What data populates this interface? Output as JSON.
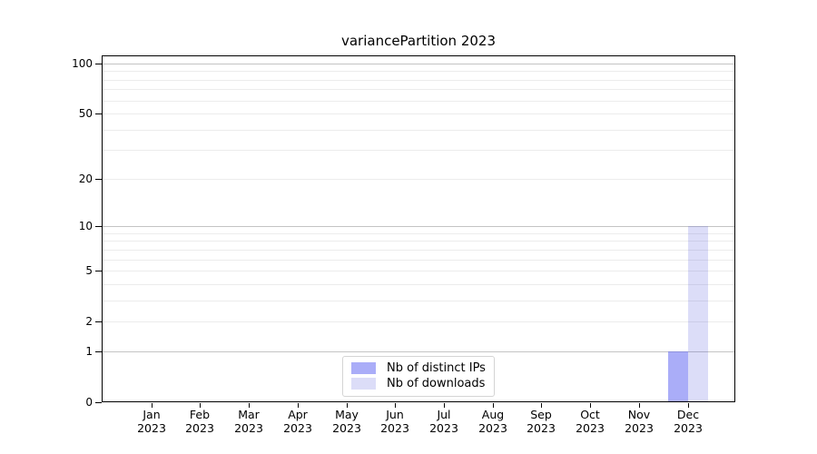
{
  "chart_data": {
    "type": "bar",
    "title": "variancePartition 2023",
    "x_categories": [
      "Jan",
      "Feb",
      "Mar",
      "Apr",
      "May",
      "Jun",
      "Jul",
      "Aug",
      "Sep",
      "Oct",
      "Nov",
      "Dec"
    ],
    "x_year_label": "2023",
    "series": [
      {
        "name": "Nb of distinct IPs",
        "color": "#aaadf8",
        "values": [
          0,
          0,
          0,
          0,
          0,
          0,
          0,
          0,
          0,
          0,
          0,
          1
        ]
      },
      {
        "name": "Nb of downloads",
        "color": "#dcddf8",
        "values": [
          0,
          0,
          0,
          0,
          0,
          0,
          0,
          0,
          0,
          0,
          0,
          10
        ]
      }
    ],
    "y_scale": "log10(value+1)",
    "y_ticks": [
      100,
      50,
      20,
      10,
      5,
      2,
      1,
      0
    ],
    "y_major_gridlines": [
      1,
      10,
      100
    ],
    "y_minor_gridlines": [
      2,
      3,
      4,
      5,
      6,
      7,
      8,
      9,
      20,
      30,
      40,
      50,
      60,
      70,
      80,
      90
    ],
    "ylim": [
      0,
      112
    ],
    "xlabel": "",
    "ylabel": "",
    "grid": "horizontal",
    "legend_position": "lower center"
  },
  "colors": {
    "background": "#ffffff",
    "spine": "#000000",
    "major_gridline": "#c4c4c4",
    "minor_gridline": "#ececec",
    "bar_distinct_ips": "#aaadf8",
    "bar_downloads": "#dcddf8",
    "text": "#000000"
  }
}
